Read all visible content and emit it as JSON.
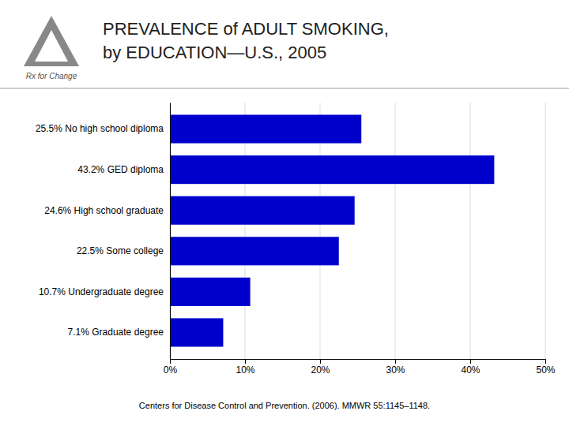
{
  "chart_data": {
    "type": "bar",
    "orientation": "horizontal",
    "title": "PREVALENCE of ADULT SMOKING,",
    "subtitle": "by EDUCATION—U.S., 2005",
    "categories": [
      "25.5% No high school diploma",
      "43.2% GED diploma",
      "24.6% High school graduate",
      "22.5% Some college",
      "10.7% Undergraduate degree",
      "7.1% Graduate degree"
    ],
    "values": [
      25.5,
      43.2,
      24.6,
      22.5,
      10.7,
      7.1
    ],
    "color": "#0000cc",
    "xlim": [
      0,
      50
    ],
    "xticks": [
      {
        "value": 0,
        "label": "0%"
      },
      {
        "value": 10,
        "label": "10%"
      },
      {
        "value": 20,
        "label": "20%"
      },
      {
        "value": 30,
        "label": "30%"
      },
      {
        "value": 40,
        "label": "40%"
      },
      {
        "value": 50,
        "label": "50%"
      }
    ],
    "grid": true,
    "annotations": [
      "Rx for Change",
      "Centers for Disease Control and Prevention. (2006). MMWR 55:1145–1148."
    ]
  }
}
